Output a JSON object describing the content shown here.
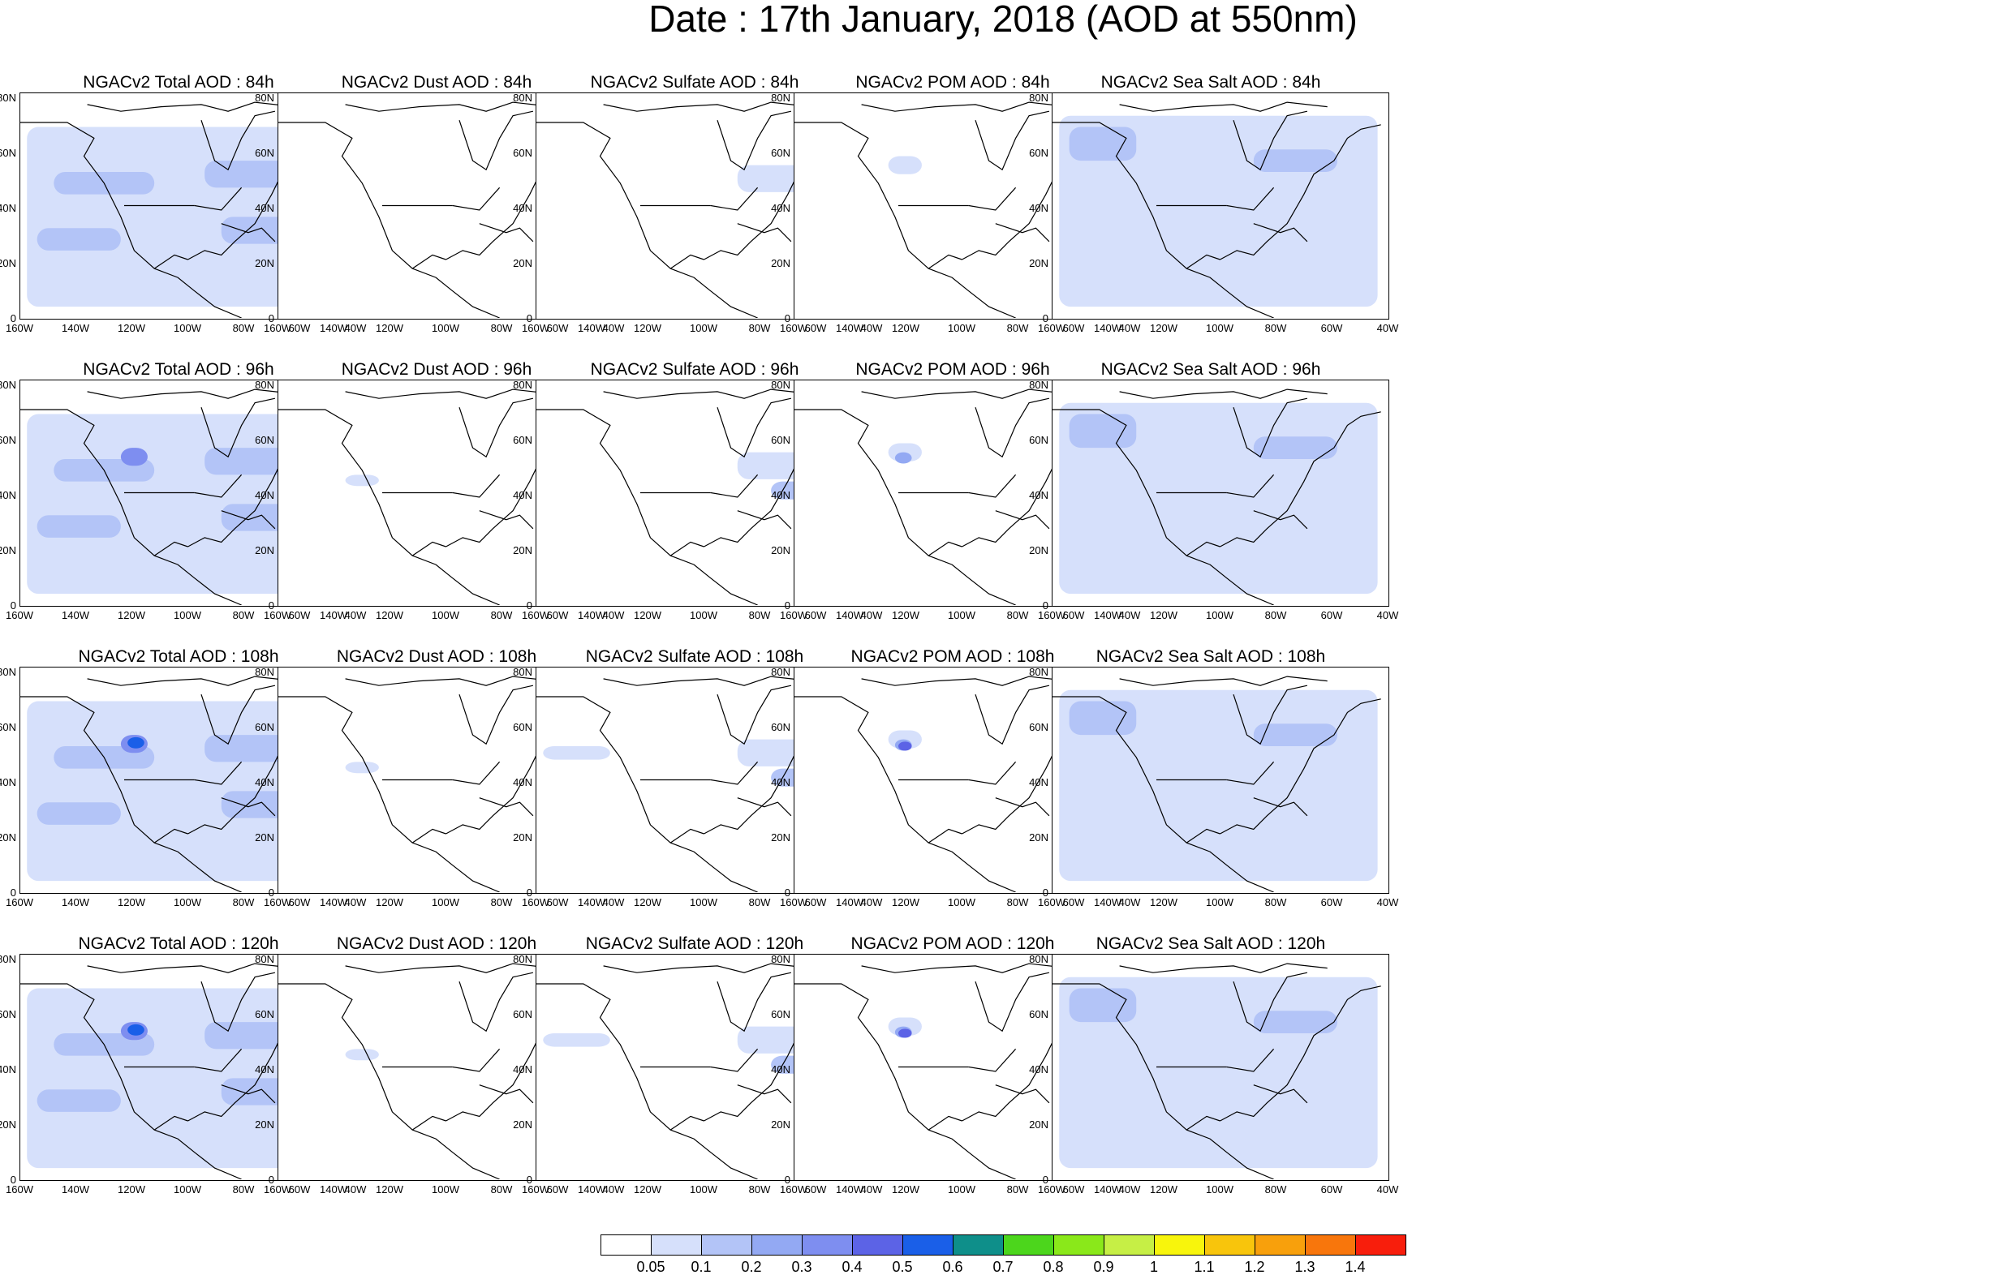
{
  "page_title": "Date : 17th January, 2018 (AOD at 550nm)",
  "axes": {
    "y_labels": [
      "80N",
      "60N",
      "40N",
      "20N",
      "0"
    ],
    "x_labels": [
      "160W",
      "140W",
      "120W",
      "100W",
      "80W",
      "60W",
      "40W"
    ]
  },
  "rows": [
    {
      "lead": "84h",
      "titles": [
        "NGACv2 Total AOD : 84h",
        "NGACv2 Dust AOD : 84h",
        "NGACv2 Sulfate AOD : 84h",
        "NGACv2 POM AOD : 84h",
        "NGACv2 Sea Salt AOD : 84h"
      ]
    },
    {
      "lead": "96h",
      "titles": [
        "NGACv2 Total AOD : 96h",
        "NGACv2 Dust AOD : 96h",
        "NGACv2 Sulfate AOD : 96h",
        "NGACv2 POM AOD : 96h",
        "NGACv2 Sea Salt AOD : 96h"
      ]
    },
    {
      "lead": "108h",
      "titles": [
        "NGACv2 Total AOD : 108h",
        "NGACv2 Dust AOD : 108h",
        "NGACv2 Sulfate AOD : 108h",
        "NGACv2 POM AOD : 108h",
        "NGACv2 Sea Salt AOD : 108h"
      ]
    },
    {
      "lead": "120h",
      "titles": [
        "NGACv2 Total AOD : 120h",
        "NGACv2 Dust AOD : 120h",
        "NGACv2 Sulfate AOD : 120h",
        "NGACv2 POM AOD : 120h",
        "NGACv2 Sea Salt  AOD : 120h"
      ]
    }
  ],
  "species": [
    "Total",
    "Dust",
    "Sulfate",
    "POM",
    "Sea Salt"
  ],
  "colorbar": {
    "colors": [
      "#ffffff",
      "#d6e0fb",
      "#b3c4f7",
      "#93a9f3",
      "#7e8ef0",
      "#5c63e6",
      "#1a5fe8",
      "#0e8f8a",
      "#4cd61c",
      "#8ae81a",
      "#c6ef45",
      "#f8f50c",
      "#f8c50c",
      "#f8a00c",
      "#f8760c",
      "#f81e0c"
    ],
    "labels": [
      "0.05",
      "0.1",
      "0.2",
      "0.3",
      "0.4",
      "0.5",
      "0.6",
      "0.7",
      "0.8",
      "0.9",
      "1",
      "1.1",
      "1.2",
      "1.3",
      "1.4"
    ]
  }
}
